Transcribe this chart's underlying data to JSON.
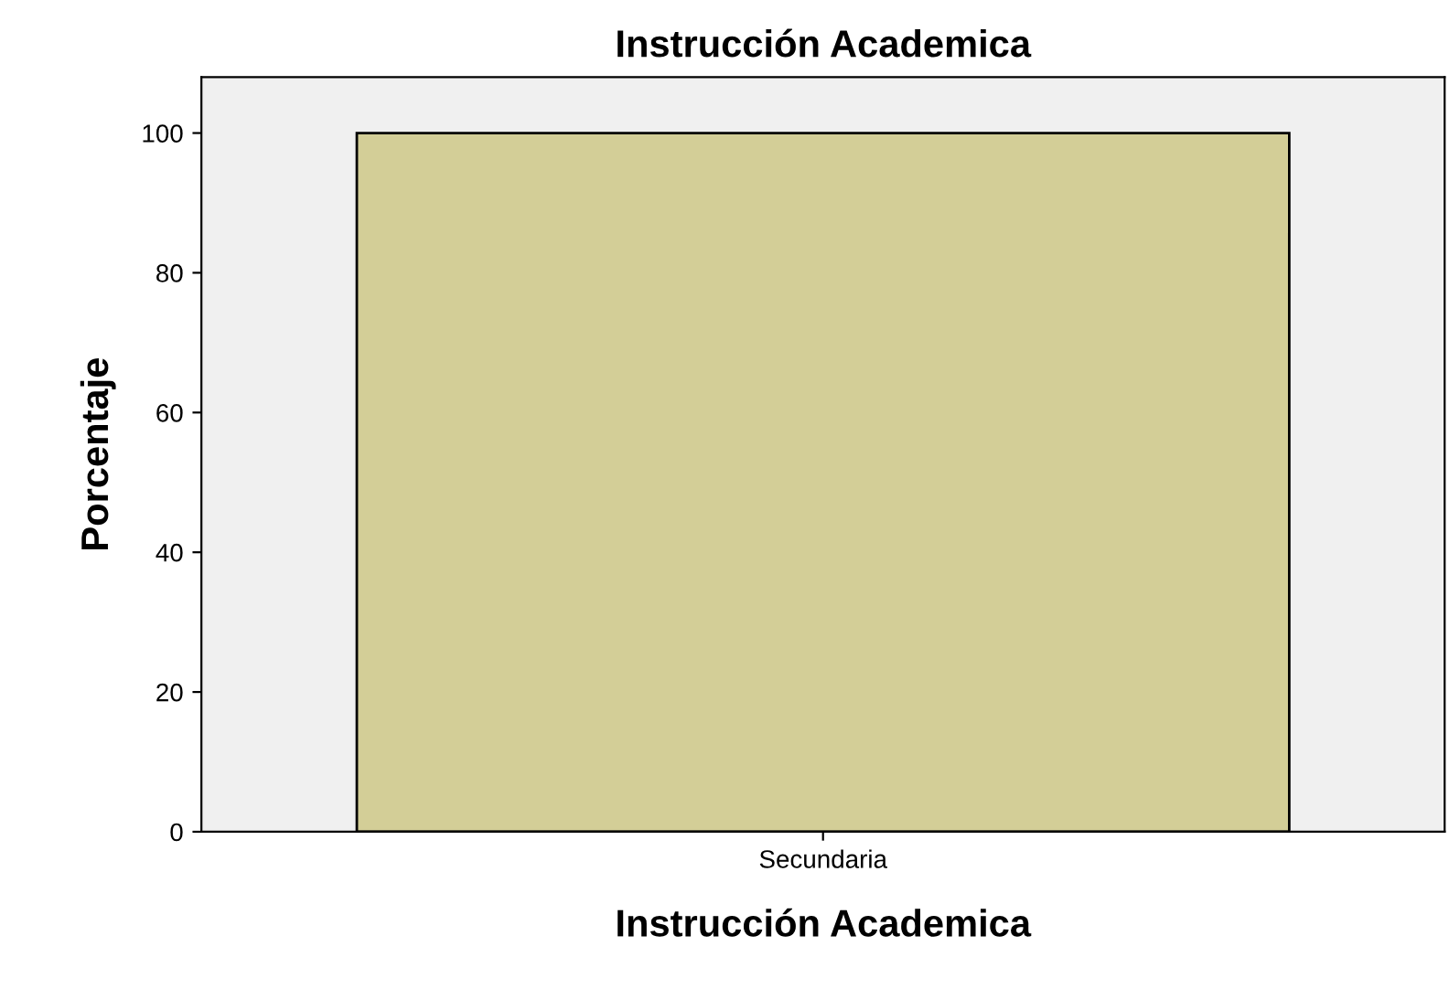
{
  "chart_data": {
    "type": "bar",
    "title": "Instrucción Academica",
    "xlabel": "Instrucción Academica",
    "ylabel": "Porcentaje",
    "categories": [
      "Secundaria"
    ],
    "values": [
      100
    ],
    "color": "#d3ce97",
    "ylim": [
      0,
      108
    ],
    "yticks": [
      0,
      20,
      40,
      60,
      80,
      100
    ],
    "grid": false,
    "legend": false
  }
}
